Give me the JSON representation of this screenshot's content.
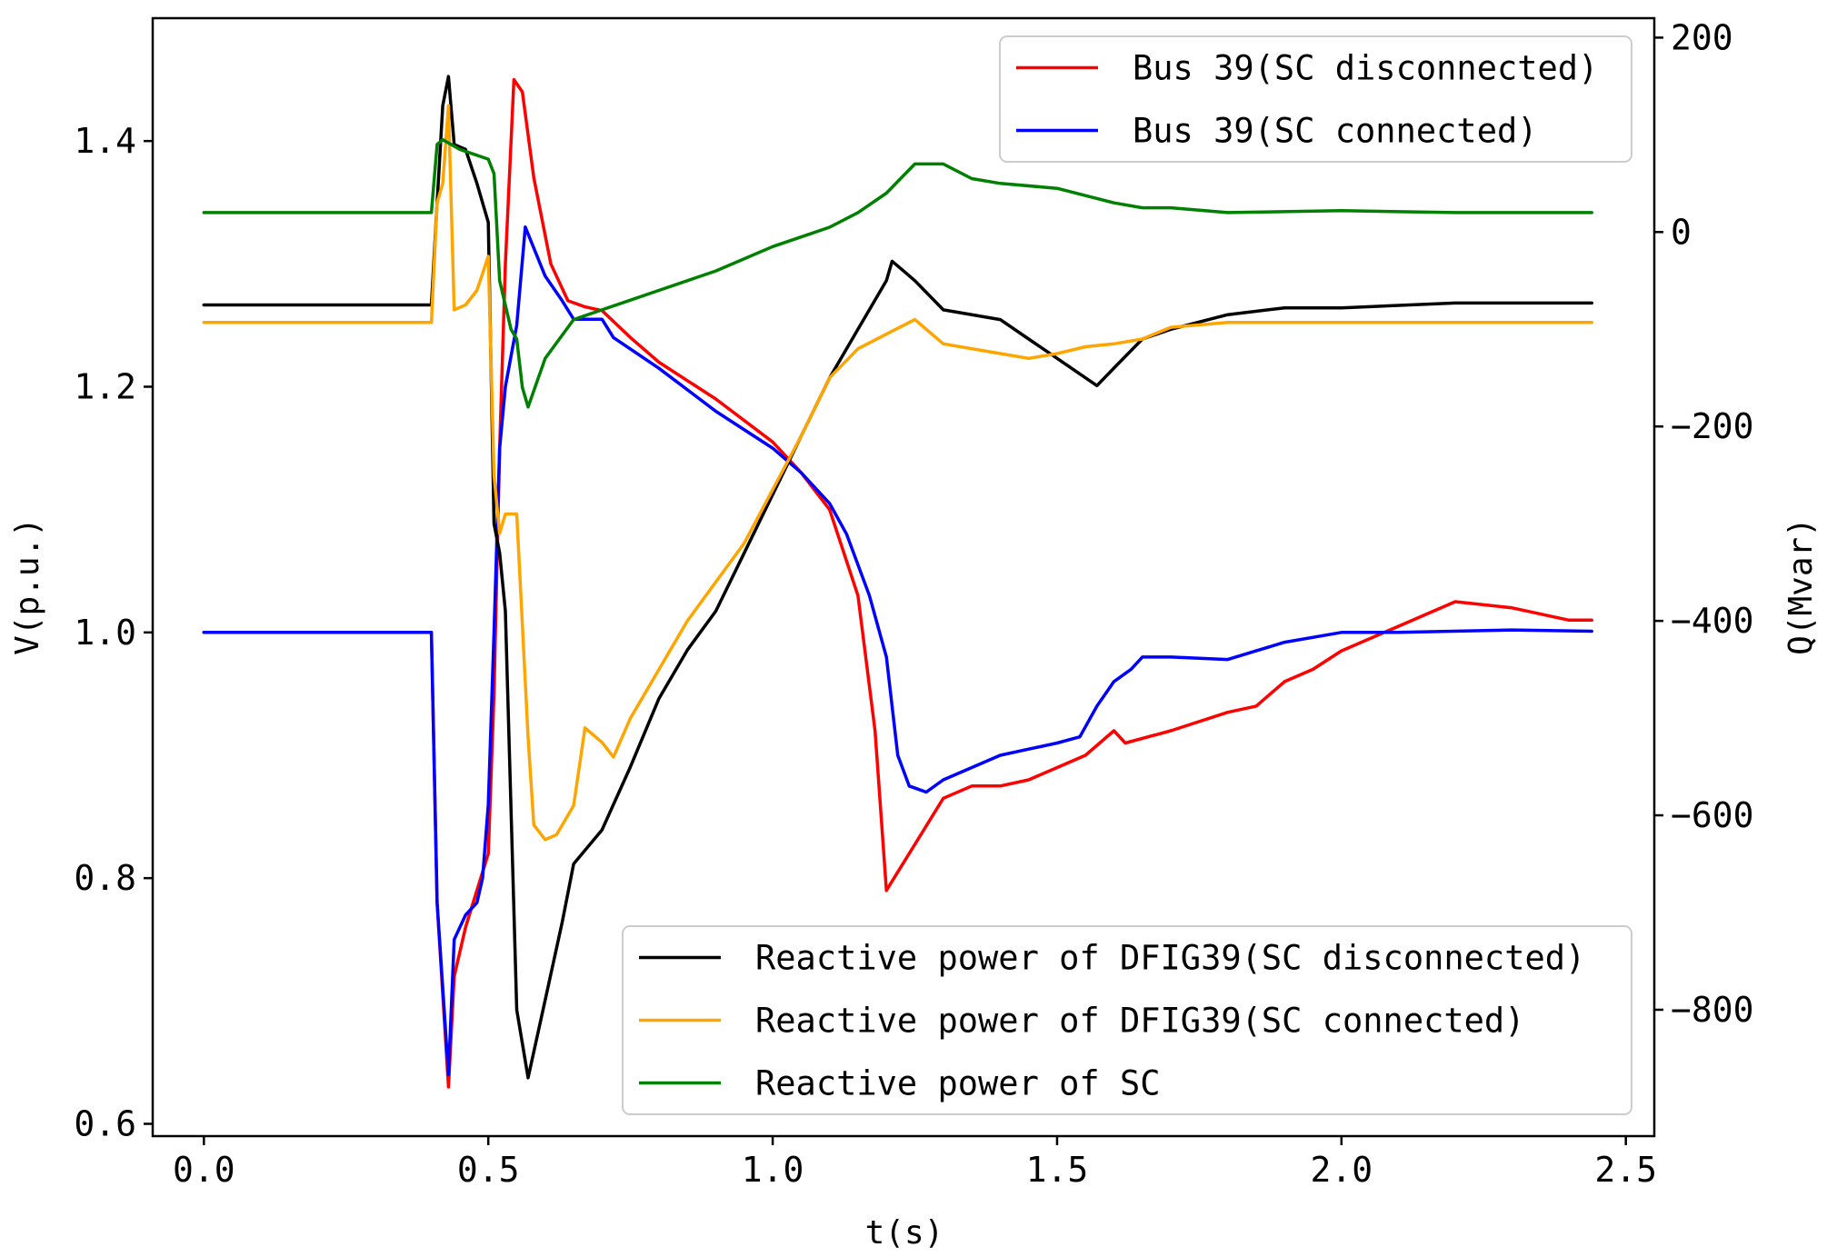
{
  "chart_data": {
    "type": "line",
    "xlabel": "t(s)",
    "ylabel_left": "V(p.u.)",
    "ylabel_right": "Q(Mvar)",
    "xlim": [
      -0.09,
      2.55
    ],
    "ylim_left": [
      0.59,
      1.5
    ],
    "ylim_right": [
      -930,
      220
    ],
    "x_ticks": [
      0.0,
      0.5,
      1.0,
      1.5,
      2.0,
      2.5
    ],
    "x_tick_labels": [
      "0.0",
      "0.5",
      "1.0",
      "1.5",
      "2.0",
      "2.5"
    ],
    "y_left_ticks": [
      0.6,
      0.8,
      1.0,
      1.2,
      1.4
    ],
    "y_left_tick_labels": [
      "0.6",
      "0.8",
      "1.0",
      "1.2",
      "1.4"
    ],
    "y_right_ticks": [
      -800,
      -600,
      -400,
      -200,
      0,
      200
    ],
    "y_right_tick_labels": [
      "−800",
      "−600",
      "−400",
      "−200",
      "0",
      "200"
    ],
    "grid": false,
    "legends": [
      {
        "placement": "top-right",
        "entries": [
          0,
          1
        ]
      },
      {
        "placement": "bottom-right",
        "entries": [
          2,
          3,
          4
        ]
      }
    ],
    "series": [
      {
        "name": "Bus 39(SC disconnected)",
        "color": "#ff0000",
        "axis": "left",
        "points": [
          [
            0.0,
            1.0
          ],
          [
            0.4,
            1.0
          ],
          [
            0.41,
            0.78
          ],
          [
            0.43,
            0.63
          ],
          [
            0.44,
            0.72
          ],
          [
            0.46,
            0.76
          ],
          [
            0.48,
            0.79
          ],
          [
            0.5,
            0.82
          ],
          [
            0.51,
            0.95
          ],
          [
            0.52,
            1.15
          ],
          [
            0.53,
            1.3
          ],
          [
            0.545,
            1.45
          ],
          [
            0.56,
            1.44
          ],
          [
            0.58,
            1.37
          ],
          [
            0.61,
            1.3
          ],
          [
            0.64,
            1.27
          ],
          [
            0.67,
            1.265
          ],
          [
            0.7,
            1.262
          ],
          [
            0.75,
            1.24
          ],
          [
            0.8,
            1.22
          ],
          [
            0.9,
            1.19
          ],
          [
            1.0,
            1.155
          ],
          [
            1.05,
            1.13
          ],
          [
            1.1,
            1.1
          ],
          [
            1.15,
            1.03
          ],
          [
            1.18,
            0.92
          ],
          [
            1.2,
            0.79
          ],
          [
            1.24,
            0.82
          ],
          [
            1.3,
            0.865
          ],
          [
            1.35,
            0.875
          ],
          [
            1.4,
            0.875
          ],
          [
            1.45,
            0.88
          ],
          [
            1.5,
            0.89
          ],
          [
            1.55,
            0.9
          ],
          [
            1.6,
            0.92
          ],
          [
            1.62,
            0.91
          ],
          [
            1.7,
            0.92
          ],
          [
            1.8,
            0.935
          ],
          [
            1.85,
            0.94
          ],
          [
            1.9,
            0.96
          ],
          [
            1.95,
            0.97
          ],
          [
            2.0,
            0.985
          ],
          [
            2.1,
            1.005
          ],
          [
            2.2,
            1.025
          ],
          [
            2.3,
            1.02
          ],
          [
            2.4,
            1.01
          ],
          [
            2.44,
            1.01
          ]
        ]
      },
      {
        "name": "Bus 39(SC connected)",
        "color": "#0000ff",
        "axis": "left",
        "points": [
          [
            0.0,
            1.0
          ],
          [
            0.4,
            1.0
          ],
          [
            0.41,
            0.78
          ],
          [
            0.43,
            0.64
          ],
          [
            0.44,
            0.75
          ],
          [
            0.46,
            0.77
          ],
          [
            0.48,
            0.78
          ],
          [
            0.49,
            0.8
          ],
          [
            0.5,
            0.86
          ],
          [
            0.51,
            1.0
          ],
          [
            0.52,
            1.15
          ],
          [
            0.53,
            1.2
          ],
          [
            0.55,
            1.25
          ],
          [
            0.565,
            1.33
          ],
          [
            0.6,
            1.29
          ],
          [
            0.63,
            1.27
          ],
          [
            0.65,
            1.255
          ],
          [
            0.7,
            1.255
          ],
          [
            0.72,
            1.24
          ],
          [
            0.8,
            1.215
          ],
          [
            0.9,
            1.18
          ],
          [
            1.0,
            1.15
          ],
          [
            1.05,
            1.13
          ],
          [
            1.1,
            1.105
          ],
          [
            1.13,
            1.08
          ],
          [
            1.17,
            1.03
          ],
          [
            1.2,
            0.98
          ],
          [
            1.22,
            0.9
          ],
          [
            1.24,
            0.875
          ],
          [
            1.27,
            0.87
          ],
          [
            1.3,
            0.88
          ],
          [
            1.35,
            0.89
          ],
          [
            1.4,
            0.9
          ],
          [
            1.45,
            0.905
          ],
          [
            1.5,
            0.91
          ],
          [
            1.54,
            0.915
          ],
          [
            1.57,
            0.94
          ],
          [
            1.6,
            0.96
          ],
          [
            1.63,
            0.97
          ],
          [
            1.65,
            0.98
          ],
          [
            1.67,
            0.98
          ],
          [
            1.7,
            0.98
          ],
          [
            1.8,
            0.978
          ],
          [
            1.85,
            0.985
          ],
          [
            1.9,
            0.992
          ],
          [
            2.0,
            1.0
          ],
          [
            2.1,
            1.0
          ],
          [
            2.3,
            1.002
          ],
          [
            2.44,
            1.001
          ]
        ]
      },
      {
        "name": "Reactive power of DFIG39(SC disconnected)",
        "color": "#000000",
        "axis": "right",
        "points": [
          [
            0.0,
            -75
          ],
          [
            0.4,
            -75
          ],
          [
            0.41,
            30
          ],
          [
            0.42,
            130
          ],
          [
            0.43,
            160
          ],
          [
            0.44,
            90
          ],
          [
            0.46,
            85
          ],
          [
            0.48,
            50
          ],
          [
            0.5,
            10
          ],
          [
            0.51,
            -300
          ],
          [
            0.52,
            -330
          ],
          [
            0.53,
            -390
          ],
          [
            0.55,
            -800
          ],
          [
            0.57,
            -870
          ],
          [
            0.6,
            -790
          ],
          [
            0.63,
            -710
          ],
          [
            0.65,
            -650
          ],
          [
            0.7,
            -615
          ],
          [
            0.75,
            -550
          ],
          [
            0.8,
            -480
          ],
          [
            0.85,
            -430
          ],
          [
            0.9,
            -390
          ],
          [
            0.95,
            -330
          ],
          [
            1.0,
            -270
          ],
          [
            1.05,
            -210
          ],
          [
            1.1,
            -150
          ],
          [
            1.15,
            -100
          ],
          [
            1.2,
            -50
          ],
          [
            1.21,
            -30
          ],
          [
            1.23,
            -40
          ],
          [
            1.25,
            -50
          ],
          [
            1.3,
            -80
          ],
          [
            1.4,
            -90
          ],
          [
            1.45,
            -110
          ],
          [
            1.5,
            -130
          ],
          [
            1.55,
            -150
          ],
          [
            1.57,
            -158
          ],
          [
            1.6,
            -140
          ],
          [
            1.65,
            -110
          ],
          [
            1.7,
            -100
          ],
          [
            1.8,
            -85
          ],
          [
            1.9,
            -78
          ],
          [
            2.0,
            -78
          ],
          [
            2.2,
            -73
          ],
          [
            2.44,
            -73
          ]
        ]
      },
      {
        "name": "Reactive power of DFIG39(SC connected)",
        "color": "#ffa500",
        "axis": "right",
        "points": [
          [
            0.0,
            -93
          ],
          [
            0.4,
            -93
          ],
          [
            0.41,
            30
          ],
          [
            0.42,
            50
          ],
          [
            0.43,
            130
          ],
          [
            0.44,
            -80
          ],
          [
            0.46,
            -75
          ],
          [
            0.48,
            -60
          ],
          [
            0.5,
            -25
          ],
          [
            0.51,
            -250
          ],
          [
            0.52,
            -310
          ],
          [
            0.53,
            -290
          ],
          [
            0.55,
            -290
          ],
          [
            0.57,
            -520
          ],
          [
            0.58,
            -610
          ],
          [
            0.6,
            -625
          ],
          [
            0.62,
            -620
          ],
          [
            0.65,
            -590
          ],
          [
            0.67,
            -510
          ],
          [
            0.7,
            -525
          ],
          [
            0.72,
            -540
          ],
          [
            0.75,
            -500
          ],
          [
            0.8,
            -450
          ],
          [
            0.85,
            -400
          ],
          [
            0.9,
            -360
          ],
          [
            0.95,
            -320
          ],
          [
            1.0,
            -265
          ],
          [
            1.05,
            -210
          ],
          [
            1.1,
            -150
          ],
          [
            1.15,
            -120
          ],
          [
            1.2,
            -105
          ],
          [
            1.25,
            -90
          ],
          [
            1.3,
            -115
          ],
          [
            1.4,
            -125
          ],
          [
            1.45,
            -130
          ],
          [
            1.5,
            -125
          ],
          [
            1.55,
            -118
          ],
          [
            1.6,
            -115
          ],
          [
            1.65,
            -110
          ],
          [
            1.7,
            -98
          ],
          [
            1.8,
            -93
          ],
          [
            2.0,
            -93
          ],
          [
            2.44,
            -93
          ]
        ]
      },
      {
        "name": "Reactive power of SC",
        "color": "#008000",
        "axis": "right",
        "points": [
          [
            0.0,
            20
          ],
          [
            0.4,
            20
          ],
          [
            0.41,
            90
          ],
          [
            0.42,
            95
          ],
          [
            0.45,
            85
          ],
          [
            0.5,
            75
          ],
          [
            0.51,
            60
          ],
          [
            0.52,
            -50
          ],
          [
            0.54,
            -100
          ],
          [
            0.55,
            -110
          ],
          [
            0.56,
            -160
          ],
          [
            0.57,
            -180
          ],
          [
            0.6,
            -130
          ],
          [
            0.65,
            -90
          ],
          [
            0.7,
            -80
          ],
          [
            0.75,
            -70
          ],
          [
            0.8,
            -60
          ],
          [
            0.9,
            -40
          ],
          [
            1.0,
            -15
          ],
          [
            1.05,
            -5
          ],
          [
            1.1,
            5
          ],
          [
            1.15,
            20
          ],
          [
            1.2,
            40
          ],
          [
            1.25,
            70
          ],
          [
            1.3,
            70
          ],
          [
            1.35,
            55
          ],
          [
            1.4,
            50
          ],
          [
            1.5,
            45
          ],
          [
            1.6,
            30
          ],
          [
            1.65,
            25
          ],
          [
            1.7,
            25
          ],
          [
            1.8,
            20
          ],
          [
            2.0,
            22
          ],
          [
            2.2,
            20
          ],
          [
            2.44,
            20
          ]
        ]
      }
    ]
  }
}
